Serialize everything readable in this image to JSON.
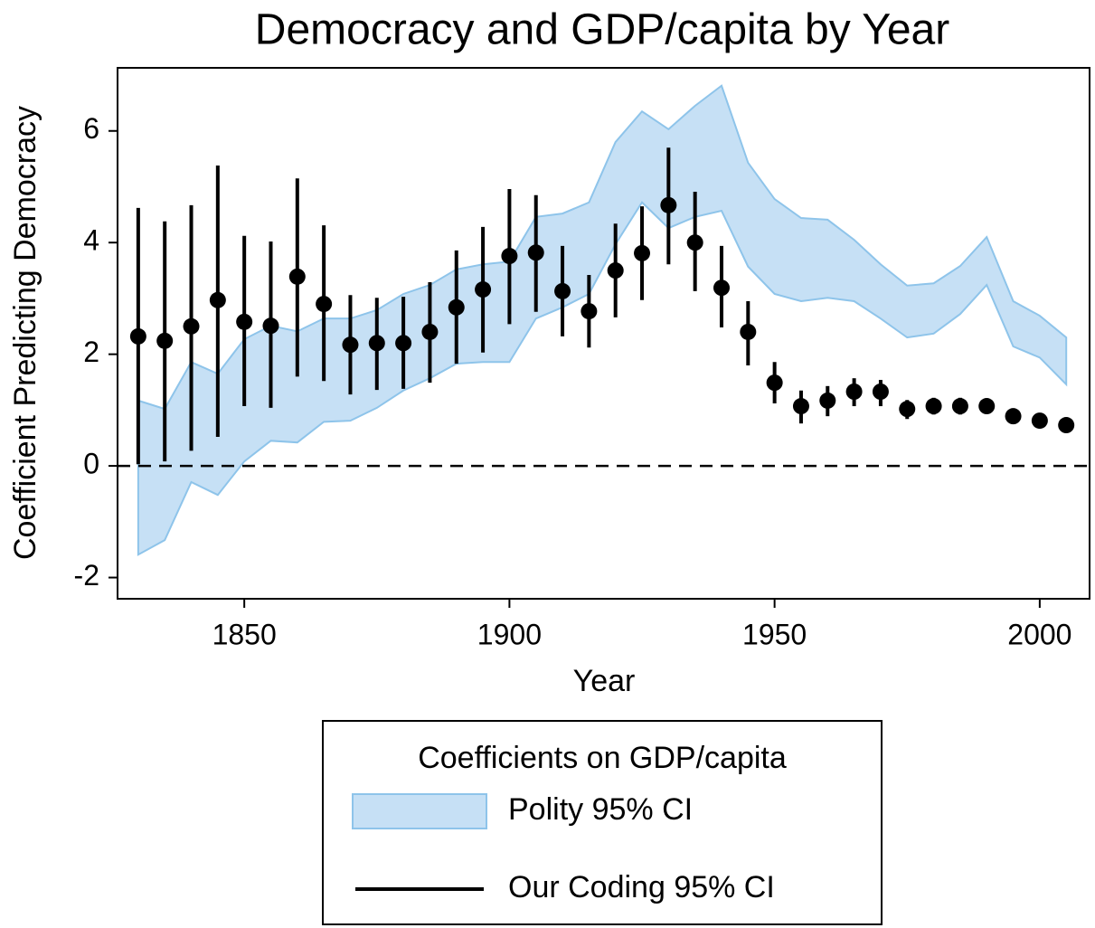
{
  "chart_data": {
    "type": "band_errorbar",
    "title": "Democracy and GDP/capita by Year",
    "x_label": "Year",
    "y_label": "Coefficient Predicting Democracy",
    "legend_title": "Coefficients on GDP/capita",
    "x": [
      1830,
      1835,
      1840,
      1845,
      1850,
      1855,
      1860,
      1865,
      1870,
      1875,
      1880,
      1885,
      1890,
      1895,
      1900,
      1905,
      1910,
      1915,
      1920,
      1925,
      1930,
      1935,
      1940,
      1945,
      1950,
      1955,
      1960,
      1965,
      1970,
      1975,
      1980,
      1985,
      1990,
      1995,
      2000,
      2005
    ],
    "series": [
      {
        "name": "Polity 95% CI",
        "kind": "band",
        "color": "#c6e0f5",
        "edge_color": "#8ec4ea",
        "upper": [
          1.17,
          1.02,
          1.86,
          1.65,
          2.27,
          2.51,
          2.41,
          2.64,
          2.64,
          2.79,
          3.08,
          3.24,
          3.52,
          3.61,
          3.66,
          4.46,
          4.52,
          4.72,
          5.8,
          6.35,
          6.03,
          6.45,
          6.81,
          5.43,
          4.78,
          4.44,
          4.41,
          4.05,
          3.61,
          3.23,
          3.27,
          3.58,
          4.1,
          2.95,
          2.69,
          2.3
        ],
        "lower": [
          -1.59,
          -1.33,
          -0.29,
          -0.52,
          0.08,
          0.45,
          0.42,
          0.79,
          0.81,
          1.04,
          1.35,
          1.57,
          1.83,
          1.86,
          1.86,
          2.64,
          2.84,
          3.08,
          3.97,
          4.72,
          4.26,
          4.46,
          4.57,
          3.57,
          3.08,
          2.95,
          3.01,
          2.95,
          2.64,
          2.3,
          2.37,
          2.72,
          3.24,
          2.14,
          1.94,
          1.46
        ]
      },
      {
        "name": "Our Coding 95% CI",
        "kind": "errorbar",
        "color": "#000000",
        "values": [
          2.32,
          2.24,
          2.5,
          2.97,
          2.58,
          2.51,
          3.39,
          2.9,
          2.17,
          2.2,
          2.2,
          2.4,
          2.84,
          3.16,
          3.76,
          3.82,
          3.13,
          2.77,
          3.5,
          3.81,
          4.67,
          4.0,
          3.19,
          2.4,
          1.49,
          1.07,
          1.17,
          1.33,
          1.33,
          1.02,
          1.07,
          1.07,
          1.07,
          0.89,
          0.81,
          0.73
        ],
        "upper": [
          4.62,
          4.38,
          4.67,
          5.38,
          4.12,
          4.02,
          5.15,
          4.31,
          3.06,
          3.01,
          3.03,
          3.29,
          3.86,
          4.28,
          4.96,
          4.85,
          3.94,
          3.42,
          4.34,
          4.65,
          5.7,
          4.91,
          3.94,
          2.95,
          1.86,
          1.35,
          1.43,
          1.57,
          1.54,
          1.18,
          1.22,
          1.22,
          1.2,
          0.98,
          0.9,
          0.81
        ],
        "lower": [
          0.03,
          0.08,
          0.27,
          0.52,
          1.07,
          1.04,
          1.6,
          1.52,
          1.28,
          1.36,
          1.38,
          1.49,
          1.83,
          2.03,
          2.54,
          2.76,
          2.32,
          2.12,
          2.66,
          2.97,
          3.61,
          3.13,
          2.48,
          1.8,
          1.12,
          0.76,
          0.89,
          1.07,
          1.07,
          0.84,
          0.92,
          0.92,
          0.94,
          0.8,
          0.72,
          0.65
        ]
      }
    ],
    "reference_line": 0,
    "xlim": [
      1826.1,
      2009.4
    ],
    "ylim": [
      -2.38,
      7.13
    ],
    "xticks": [
      1850,
      1900,
      1950,
      2000
    ],
    "yticks": [
      -2,
      0,
      2,
      4,
      6
    ]
  }
}
